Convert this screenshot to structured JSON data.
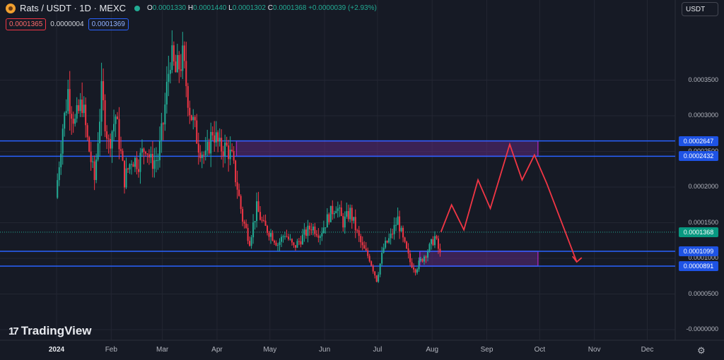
{
  "header": {
    "title": "Rats / USDT · 1D · MEXC",
    "o_label": "O",
    "o": "0.0001330",
    "h_label": "H",
    "h": "0.0001440",
    "l_label": "L",
    "l": "0.0001302",
    "c_label": "C",
    "c": "0.0001368",
    "change": "+0.0000039 (+2.93%)"
  },
  "trade": {
    "sell": "0.0001365",
    "spread": "0.0000004",
    "buy": "0.0001369"
  },
  "currency": "USDT",
  "brand": "TradingView",
  "colors": {
    "background": "#161a25",
    "up": "#22ab94",
    "down": "#f23645",
    "level_line": "#2962ff",
    "zone_fill": "#5b2a7c",
    "zone_border": "#9c27b0",
    "projection": "#f23645"
  },
  "chart_data": {
    "type": "candlestick",
    "symbol": "Rats / USDT",
    "interval": "1D",
    "exchange": "MEXC",
    "y_ticks": [
      "0.0003500",
      "0.0003000",
      "0.0002500",
      "0.0002000",
      "0.0001500",
      "0.0001000",
      "0.0000500",
      "-0.0000000"
    ],
    "x_ticks": [
      "2024",
      "Feb",
      "Mar",
      "Apr",
      "May",
      "Jun",
      "Jul",
      "Aug",
      "Sep",
      "Oct",
      "Nov",
      "Dec"
    ],
    "ylim": [
      0.0,
      0.0004
    ],
    "last_price": "0.0001368",
    "levels": [
      "0.0002647",
      "0.0002432",
      "0.0001099",
      "0.0000891"
    ],
    "zones": [
      {
        "top": 0.0002647,
        "bottom": 0.0002432,
        "from": "2024-04-12",
        "to": "2024-09-30"
      },
      {
        "top": 0.0001099,
        "bottom": 8.91e-05,
        "from": "2024-07-25",
        "to": "2024-09-30"
      }
    ],
    "price_path": [
      [
        "2024-01-01",
        0.000185,
        0.000285
      ],
      [
        "2024-01-05",
        0.00028,
        0.000335
      ],
      [
        "2024-01-08",
        0.00033,
        0.00029
      ],
      [
        "2024-01-12",
        0.00029,
        0.00032
      ],
      [
        "2024-01-16",
        0.00032,
        0.000265
      ],
      [
        "2024-01-19",
        0.000265,
        0.00021
      ],
      [
        "2024-01-23",
        0.00021,
        0.00033
      ],
      [
        "2024-01-27",
        0.00033,
        0.00026
      ],
      [
        "2024-01-31",
        0.00026,
        0.0003
      ],
      [
        "2024-02-04",
        0.0003,
        0.00021
      ],
      [
        "2024-02-09",
        0.00021,
        0.00024
      ],
      [
        "2024-02-13",
        0.00024,
        0.000235
      ],
      [
        "2024-02-17",
        0.000235,
        0.00026
      ],
      [
        "2024-02-21",
        0.00026,
        0.000235
      ],
      [
        "2024-02-24",
        0.000235,
        0.00024
      ],
      [
        "2024-02-28",
        0.00024,
        0.00029
      ],
      [
        "2024-03-02",
        0.00029,
        0.000385
      ],
      [
        "2024-03-06",
        0.000385,
        0.00036
      ],
      [
        "2024-03-09",
        0.00036,
        0.00038
      ],
      [
        "2024-03-13",
        0.00038,
        0.00031
      ],
      [
        "2024-03-17",
        0.00031,
        0.00026
      ],
      [
        "2024-03-22",
        0.00026,
        0.00024
      ],
      [
        "2024-03-26",
        0.00024,
        0.00028
      ],
      [
        "2024-03-30",
        0.00028,
        0.000255
      ],
      [
        "2024-04-03",
        0.000255,
        0.000255
      ],
      [
        "2024-04-07",
        0.000255,
        0.00024
      ],
      [
        "2024-04-10",
        0.00024,
        0.0002
      ],
      [
        "2024-04-13",
        0.0002,
        0.000155
      ],
      [
        "2024-04-16",
        0.000155,
        0.000125
      ],
      [
        "2024-04-20",
        0.000125,
        0.00017
      ],
      [
        "2024-04-24",
        0.00017,
        0.000145
      ],
      [
        "2024-04-28",
        0.000145,
        0.000135
      ],
      [
        "2024-05-02",
        0.000135,
        0.00012
      ],
      [
        "2024-05-06",
        0.00012,
        0.000135
      ],
      [
        "2024-05-10",
        0.000135,
        0.000115
      ],
      [
        "2024-05-15",
        0.000115,
        0.00013
      ],
      [
        "2024-05-20",
        0.00013,
        0.000145
      ],
      [
        "2024-05-25",
        0.000145,
        0.000135
      ],
      [
        "2024-05-30",
        0.000135,
        0.00016
      ],
      [
        "2024-06-04",
        0.00016,
        0.000175
      ],
      [
        "2024-06-08",
        0.000175,
        0.00015
      ],
      [
        "2024-06-12",
        0.00015,
        0.000165
      ],
      [
        "2024-06-16",
        0.000165,
        0.000135
      ],
      [
        "2024-06-20",
        0.000135,
        0.000115
      ],
      [
        "2024-06-23",
        0.000115,
        0.0001
      ],
      [
        "2024-06-27",
        0.0001,
        7e-05
      ],
      [
        "2024-07-01",
        7e-05,
        0.000115
      ],
      [
        "2024-07-05",
        0.000115,
        0.00013
      ],
      [
        "2024-07-09",
        0.00013,
        0.000155
      ],
      [
        "2024-07-13",
        0.000155,
        0.000125
      ],
      [
        "2024-07-16",
        0.000125,
        9.5e-05
      ],
      [
        "2024-07-20",
        9.5e-05,
        8.5e-05
      ],
      [
        "2024-07-23",
        8.5e-05,
        0.0001
      ],
      [
        "2024-07-27",
        0.0001,
        0.000115
      ],
      [
        "2024-07-31",
        0.000115,
        0.00013
      ],
      [
        "2024-08-03",
        0.00013,
        0.000105
      ],
      [
        "2024-08-06",
        0.000105,
        0.000137
      ]
    ],
    "projection": [
      [
        "2024-08-06",
        0.000137
      ],
      [
        "2024-08-12",
        0.000175
      ],
      [
        "2024-08-19",
        0.00014
      ],
      [
        "2024-08-27",
        0.00021
      ],
      [
        "2024-09-03",
        0.00017
      ],
      [
        "2024-09-14",
        0.00026
      ],
      [
        "2024-09-21",
        0.00021
      ],
      [
        "2024-09-28",
        0.000245
      ],
      [
        "2024-10-05",
        0.000205
      ],
      [
        "2024-10-22",
        9.5e-05
      ]
    ]
  }
}
